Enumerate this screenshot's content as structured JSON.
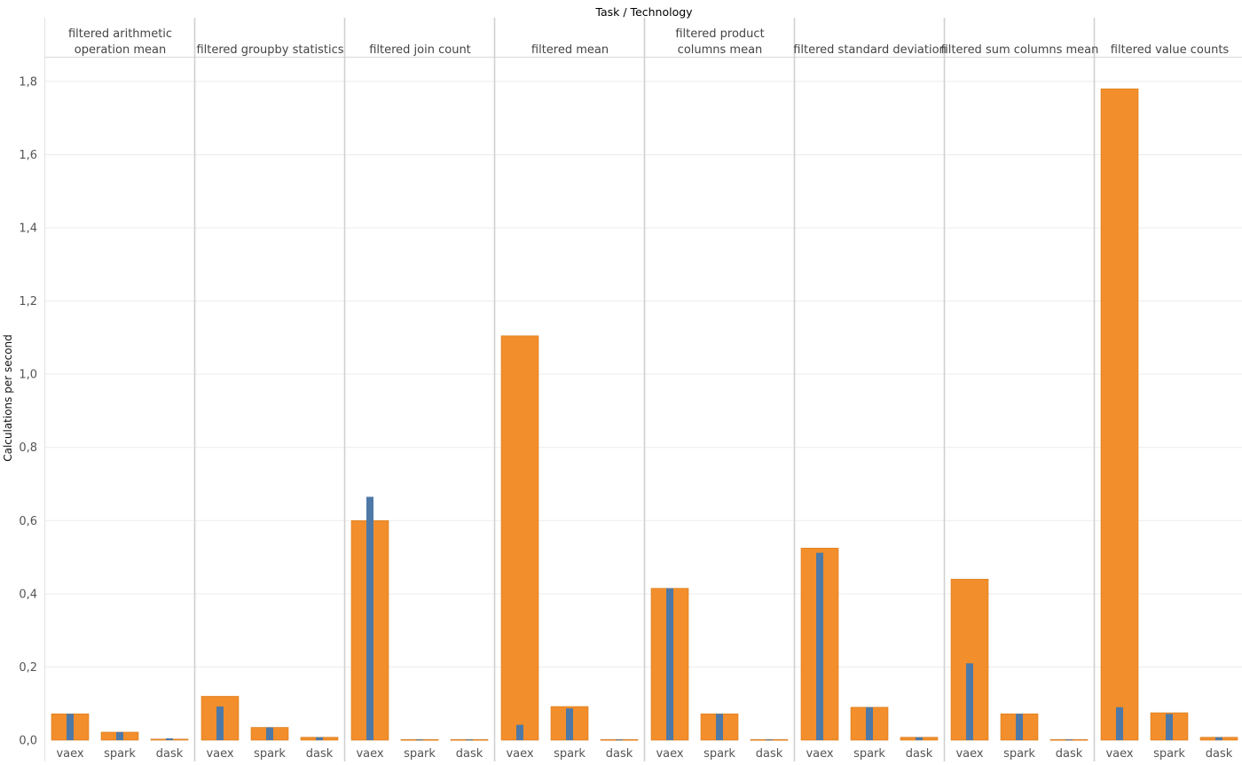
{
  "chart_data": {
    "type": "bar",
    "title": "Task / Technology",
    "ylabel": "Calculations per second",
    "xlabel": "",
    "ylim": [
      0,
      1.87
    ],
    "yticks": [
      "0,0",
      "0,2",
      "0,4",
      "0,6",
      "0,8",
      "1,0",
      "1,2",
      "1,4",
      "1,6",
      "1,8"
    ],
    "ytick_values": [
      0,
      0.2,
      0.4,
      0.6,
      0.8,
      1.0,
      1.2,
      1.4,
      1.6,
      1.8
    ],
    "grid": "horizontal",
    "colors": {
      "wide_bar": "#F28E2B",
      "narrow_bar": "#4E79A7",
      "grid": "#ececec",
      "divider": "#d0d0d0"
    },
    "categories": [
      "vaex",
      "spark",
      "dask"
    ],
    "panels": [
      {
        "title_lines": [
          "filtered arithmetic",
          "operation mean"
        ],
        "series": [
          {
            "values": [
              0.072,
              0.022,
              0.003
            ]
          },
          {
            "values": [
              0.072,
              0.022,
              0.005
            ]
          }
        ]
      },
      {
        "title_lines": [
          "filtered groupby statistics"
        ],
        "series": [
          {
            "values": [
              0.12,
              0.035,
              0.008
            ]
          },
          {
            "values": [
              0.092,
              0.035,
              0.008
            ]
          }
        ]
      },
      {
        "title_lines": [
          "filtered join count"
        ],
        "series": [
          {
            "values": [
              0.6,
              0.002,
              0.002
            ]
          },
          {
            "values": [
              0.665,
              0.002,
              0.002
            ]
          }
        ]
      },
      {
        "title_lines": [
          "filtered mean"
        ],
        "series": [
          {
            "values": [
              1.105,
              0.092,
              0.002
            ]
          },
          {
            "values": [
              0.042,
              0.087,
              0.002
            ]
          }
        ]
      },
      {
        "title_lines": [
          "filtered product",
          "columns mean"
        ],
        "series": [
          {
            "values": [
              0.415,
              0.072,
              0.002
            ]
          },
          {
            "values": [
              0.415,
              0.072,
              0.002
            ]
          }
        ]
      },
      {
        "title_lines": [
          "filtered standard deviation"
        ],
        "series": [
          {
            "values": [
              0.525,
              0.09,
              0.008
            ]
          },
          {
            "values": [
              0.512,
              0.09,
              0.008
            ]
          }
        ]
      },
      {
        "title_lines": [
          "filtered sum columns mean"
        ],
        "series": [
          {
            "values": [
              0.44,
              0.072,
              0.002
            ]
          },
          {
            "values": [
              0.21,
              0.072,
              0.002
            ]
          }
        ]
      },
      {
        "title_lines": [
          "filtered value counts"
        ],
        "series": [
          {
            "values": [
              1.78,
              0.075,
              0.008
            ]
          },
          {
            "values": [
              0.09,
              0.072,
              0.008
            ]
          }
        ]
      }
    ]
  }
}
